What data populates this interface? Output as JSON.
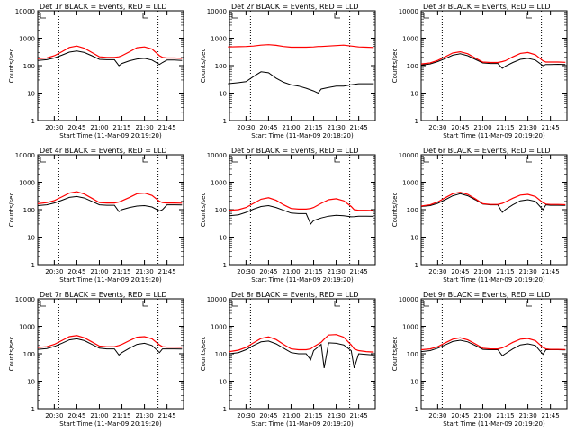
{
  "figure": {
    "start_time_label": "Start Time (11-Mar-09 20:19:20)",
    "y_axis_label": "Counts/sec",
    "colors": {
      "events": "#000000",
      "lld": "#ff0000",
      "marker_lines": "#000000",
      "background": "#ffffff"
    },
    "time_ticks": [
      "20:30",
      "20:45",
      "21:00",
      "21:15",
      "21:30",
      "21:45"
    ],
    "y_ticks": [
      "1",
      "10",
      "100",
      "1000",
      "10000"
    ]
  },
  "chart_data": [
    {
      "type": "line",
      "title": "Det 1r BLACK = Events, RED = LLD",
      "xlabel": "Start Time (11-Mar-09 20:19:20)",
      "ylabel": "Counts/sec",
      "x": [
        "20:19",
        "20:25",
        "20:30",
        "20:35",
        "20:40",
        "20:45",
        "20:50",
        "20:55",
        "21:00",
        "21:05",
        "21:10",
        "21:13",
        "21:15",
        "21:20",
        "21:25",
        "21:30",
        "21:35",
        "21:40",
        "21:42",
        "21:45",
        "21:50",
        "21:55"
      ],
      "ylim": [
        1,
        10000
      ],
      "yscale": "log",
      "grid": false,
      "legend": "none",
      "series": [
        {
          "name": "Events",
          "values": [
            155,
            165,
            190,
            240,
            310,
            340,
            300,
            230,
            170,
            165,
            165,
            100,
            120,
            150,
            175,
            185,
            160,
            110,
            130,
            160,
            160,
            155
          ]
        },
        {
          "name": "LLD",
          "values": [
            180,
            190,
            230,
            320,
            460,
            520,
            430,
            300,
            210,
            200,
            200,
            210,
            230,
            320,
            450,
            480,
            400,
            230,
            200,
            190,
            190,
            185
          ]
        }
      ],
      "markers": [
        "20:33",
        "21:39"
      ]
    },
    {
      "type": "line",
      "title": "Det 2r BLACK = Events, RED = LLD",
      "xlabel": "Start Time (11-Mar-09 20:18:20)",
      "ylabel": "Counts/sec",
      "x": [
        "20:18",
        "20:25",
        "20:30",
        "20:35",
        "20:40",
        "20:45",
        "20:50",
        "20:55",
        "21:00",
        "21:05",
        "21:10",
        "21:15",
        "21:18",
        "21:20",
        "21:25",
        "21:30",
        "21:35",
        "21:40",
        "21:45",
        "21:50",
        "21:55"
      ],
      "ylim": [
        1,
        10000
      ],
      "yscale": "log",
      "grid": false,
      "legend": "none",
      "series": [
        {
          "name": "Events",
          "values": [
            22,
            24,
            26,
            40,
            60,
            55,
            35,
            25,
            20,
            18,
            15,
            12,
            10,
            14,
            16,
            18,
            18,
            20,
            22,
            22,
            22
          ]
        },
        {
          "name": "LLD",
          "values": [
            480,
            490,
            500,
            520,
            560,
            580,
            550,
            500,
            470,
            470,
            470,
            480,
            500,
            500,
            520,
            540,
            560,
            520,
            480,
            470,
            460
          ]
        }
      ],
      "markers": [
        "20:33",
        "21:39"
      ]
    },
    {
      "type": "line",
      "title": "Det 3r BLACK = Events, RED = LLD",
      "xlabel": "Start Time (11-Mar-09 20:19:20)",
      "ylabel": "Counts/sec",
      "x": [
        "20:19",
        "20:25",
        "20:30",
        "20:35",
        "20:40",
        "20:45",
        "20:50",
        "20:55",
        "21:00",
        "21:05",
        "21:10",
        "21:13",
        "21:15",
        "21:20",
        "21:25",
        "21:30",
        "21:35",
        "21:40",
        "21:42",
        "21:45",
        "21:50",
        "21:55"
      ],
      "ylim": [
        1,
        10000
      ],
      "yscale": "log",
      "grid": false,
      "legend": "none",
      "series": [
        {
          "name": "Events",
          "values": [
            105,
            115,
            140,
            180,
            240,
            270,
            230,
            170,
            125,
            120,
            120,
            80,
            95,
            130,
            170,
            185,
            160,
            100,
            110,
            110,
            112,
            110
          ]
        },
        {
          "name": "LLD",
          "values": [
            115,
            125,
            155,
            210,
            290,
            320,
            270,
            190,
            135,
            130,
            130,
            140,
            150,
            210,
            280,
            300,
            250,
            150,
            135,
            135,
            135,
            132
          ]
        }
      ],
      "markers": [
        "20:33",
        "21:39"
      ]
    },
    {
      "type": "line",
      "title": "Det 4r BLACK = Events, RED = LLD",
      "xlabel": "Start Time (11-Mar-09 20:19:20)",
      "ylabel": "Counts/sec",
      "x": [
        "20:19",
        "20:25",
        "20:30",
        "20:35",
        "20:40",
        "20:45",
        "20:50",
        "20:55",
        "21:00",
        "21:05",
        "21:10",
        "21:13",
        "21:15",
        "21:20",
        "21:25",
        "21:30",
        "21:35",
        "21:40",
        "21:42",
        "21:45",
        "21:50",
        "21:55"
      ],
      "ylim": [
        1,
        10000
      ],
      "yscale": "log",
      "grid": false,
      "legend": "none",
      "series": [
        {
          "name": "Events",
          "values": [
            140,
            150,
            175,
            220,
            280,
            300,
            265,
            200,
            150,
            145,
            145,
            85,
            100,
            120,
            135,
            140,
            125,
            90,
            100,
            150,
            150,
            148
          ]
        },
        {
          "name": "LLD",
          "values": [
            165,
            180,
            215,
            290,
            400,
            450,
            370,
            260,
            180,
            175,
            175,
            190,
            210,
            280,
            380,
            400,
            330,
            200,
            180,
            175,
            175,
            172
          ]
        }
      ],
      "markers": [
        "20:33",
        "21:39"
      ]
    },
    {
      "type": "line",
      "title": "Det 5r BLACK = Events, RED = LLD",
      "xlabel": "Start Time (11-Mar-09 20:19:20)",
      "ylabel": "Counts/sec",
      "x": [
        "20:19",
        "20:25",
        "20:30",
        "20:35",
        "20:40",
        "20:45",
        "20:50",
        "20:55",
        "21:00",
        "21:05",
        "21:10",
        "21:13",
        "21:15",
        "21:20",
        "21:25",
        "21:30",
        "21:35",
        "21:40",
        "21:42",
        "21:45",
        "21:50",
        "21:55"
      ],
      "ylim": [
        1,
        10000
      ],
      "yscale": "log",
      "grid": false,
      "legend": "none",
      "series": [
        {
          "name": "Events",
          "values": [
            60,
            65,
            80,
            105,
            130,
            140,
            120,
            95,
            75,
            72,
            72,
            30,
            40,
            50,
            58,
            62,
            60,
            55,
            56,
            58,
            58,
            57
          ]
        },
        {
          "name": "LLD",
          "values": [
            95,
            100,
            120,
            170,
            240,
            270,
            220,
            150,
            110,
            105,
            105,
            110,
            120,
            170,
            230,
            250,
            210,
            130,
            100,
            95,
            95,
            93
          ]
        }
      ],
      "markers": [
        "20:33",
        "21:39"
      ]
    },
    {
      "type": "line",
      "title": "Det 6r BLACK = Events, RED = LLD",
      "xlabel": "Start Time (11-Mar-09 20:19:20)",
      "ylabel": "Counts/sec",
      "x": [
        "20:19",
        "20:25",
        "20:30",
        "20:35",
        "20:40",
        "20:45",
        "20:50",
        "20:55",
        "21:00",
        "21:05",
        "21:10",
        "21:13",
        "21:15",
        "21:20",
        "21:25",
        "21:30",
        "21:35",
        "21:40",
        "21:42",
        "21:45",
        "21:50",
        "21:55"
      ],
      "ylim": [
        1,
        10000
      ],
      "yscale": "log",
      "grid": false,
      "legend": "none",
      "series": [
        {
          "name": "Events",
          "values": [
            130,
            140,
            170,
            230,
            320,
            380,
            320,
            230,
            160,
            150,
            150,
            80,
            100,
            150,
            210,
            230,
            200,
            100,
            150,
            145,
            145,
            143
          ]
        },
        {
          "name": "LLD",
          "values": [
            135,
            150,
            190,
            270,
            380,
            430,
            360,
            250,
            165,
            155,
            155,
            170,
            190,
            260,
            340,
            360,
            300,
            180,
            160,
            155,
            155,
            152
          ]
        }
      ],
      "markers": [
        "20:33",
        "21:39"
      ]
    },
    {
      "type": "line",
      "title": "Det 7r BLACK = Events, RED = LLD",
      "xlabel": "Start Time (11-Mar-09 20:19:20)",
      "ylabel": "Counts/sec",
      "x": [
        "20:19",
        "20:25",
        "20:30",
        "20:35",
        "20:40",
        "20:45",
        "20:50",
        "20:55",
        "21:00",
        "21:05",
        "21:10",
        "21:13",
        "21:15",
        "21:20",
        "21:25",
        "21:30",
        "21:35",
        "21:40",
        "21:42",
        "21:45",
        "21:50",
        "21:55"
      ],
      "ylim": [
        1,
        10000
      ],
      "yscale": "log",
      "grid": false,
      "legend": "none",
      "series": [
        {
          "name": "Events",
          "values": [
            145,
            155,
            185,
            240,
            320,
            350,
            300,
            220,
            160,
            150,
            150,
            90,
            110,
            160,
            220,
            240,
            200,
            110,
            150,
            150,
            150,
            148
          ]
        },
        {
          "name": "LLD",
          "values": [
            170,
            180,
            220,
            300,
            420,
            460,
            380,
            270,
            190,
            180,
            180,
            200,
            220,
            300,
            400,
            420,
            350,
            210,
            180,
            175,
            175,
            172
          ]
        }
      ],
      "markers": [
        "20:33",
        "21:39"
      ]
    },
    {
      "type": "line",
      "title": "Det 8r BLACK = Events, RED = LLD",
      "xlabel": "Start Time (11-Mar-09 20:19:20)",
      "ylabel": "Counts/sec",
      "x": [
        "20:19",
        "20:25",
        "20:30",
        "20:35",
        "20:40",
        "20:45",
        "20:50",
        "20:55",
        "21:00",
        "21:05",
        "21:10",
        "21:13",
        "21:15",
        "21:20",
        "21:22",
        "21:25",
        "21:30",
        "21:35",
        "21:40",
        "21:42",
        "21:45",
        "21:50",
        "21:55"
      ],
      "ylim": [
        1,
        10000
      ],
      "yscale": "log",
      "grid": false,
      "legend": "none",
      "series": [
        {
          "name": "Events",
          "values": [
            100,
            110,
            140,
            200,
            270,
            290,
            230,
            160,
            110,
            100,
            100,
            60,
            130,
            220,
            30,
            250,
            240,
            210,
            130,
            30,
            100,
            95,
            90
          ]
        },
        {
          "name": "LLD",
          "values": [
            120,
            135,
            170,
            250,
            360,
            410,
            330,
            220,
            150,
            140,
            140,
            150,
            180,
            260,
            340,
            480,
            500,
            400,
            210,
            150,
            130,
            120,
            115
          ]
        }
      ],
      "markers": [
        "20:33",
        "21:39"
      ]
    },
    {
      "type": "line",
      "title": "Det 9r BLACK = Events, RED = LLD",
      "xlabel": "Start Time (11-Mar-09 20:19:20)",
      "ylabel": "Counts/sec",
      "x": [
        "20:19",
        "20:25",
        "20:30",
        "20:35",
        "20:40",
        "20:45",
        "20:50",
        "20:55",
        "21:00",
        "21:05",
        "21:10",
        "21:13",
        "21:15",
        "21:20",
        "21:25",
        "21:30",
        "21:35",
        "21:40",
        "21:42",
        "21:45",
        "21:50",
        "21:55"
      ],
      "ylim": [
        1,
        10000
      ],
      "yscale": "log",
      "grid": false,
      "legend": "none",
      "series": [
        {
          "name": "Events",
          "values": [
            120,
            130,
            160,
            210,
            280,
            310,
            270,
            200,
            145,
            140,
            140,
            85,
            100,
            150,
            210,
            230,
            200,
            95,
            140,
            140,
            140,
            138
          ]
        },
        {
          "name": "LLD",
          "values": [
            140,
            150,
            180,
            250,
            340,
            380,
            320,
            230,
            160,
            150,
            150,
            165,
            185,
            260,
            340,
            360,
            300,
            170,
            150,
            145,
            145,
            143
          ]
        }
      ],
      "markers": [
        "20:33",
        "21:39"
      ]
    }
  ]
}
